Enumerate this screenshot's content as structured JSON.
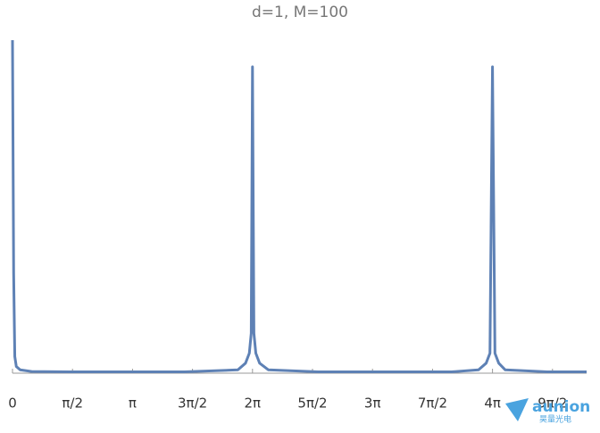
{
  "chart_data": {
    "type": "line",
    "title": "d=1, M=100",
    "x": [
      0,
      0.03,
      0.06,
      0.1,
      0.2,
      0.5,
      1.5,
      3,
      4.5,
      5.9,
      6.1,
      6.2,
      6.25,
      6.283,
      6.32,
      6.37,
      6.47,
      6.7,
      8,
      10,
      11.5,
      12.2,
      12.4,
      12.5,
      12.566,
      12.63,
      12.73,
      12.9,
      14,
      15.03
    ],
    "series": [
      {
        "color": "#5e81b5",
        "values": [
          1,
          0.3,
          0.05,
          0.02,
          0.01,
          0.005,
          0.004,
          0.004,
          0.004,
          0.01,
          0.03,
          0.06,
          0.12,
          0.92,
          0.12,
          0.06,
          0.03,
          0.01,
          0.004,
          0.004,
          0.004,
          0.01,
          0.03,
          0.06,
          0.92,
          0.06,
          0.03,
          0.01,
          0.004,
          0.004
        ]
      }
    ],
    "xlim": [
      0,
      15.03
    ],
    "ylim": [
      0,
      1
    ],
    "xticks": [
      0,
      {
        "value": 1.5708,
        "label": "π/2"
      },
      {
        "value": 3.1416,
        "label": "π"
      },
      {
        "value": 4.7124,
        "label": "3π/2"
      },
      {
        "value": 6.2832,
        "label": "2π"
      },
      {
        "value": 7.854,
        "label": "5π/2"
      },
      {
        "value": 9.4248,
        "label": "3π"
      },
      {
        "value": 10.9956,
        "label": "7π/2"
      },
      {
        "value": 12.5664,
        "label": "4π"
      },
      {
        "value": 14.1372,
        "label": "9π/2"
      }
    ],
    "watermark": {
      "text": "aunion",
      "subtext": "昊量光电"
    }
  }
}
